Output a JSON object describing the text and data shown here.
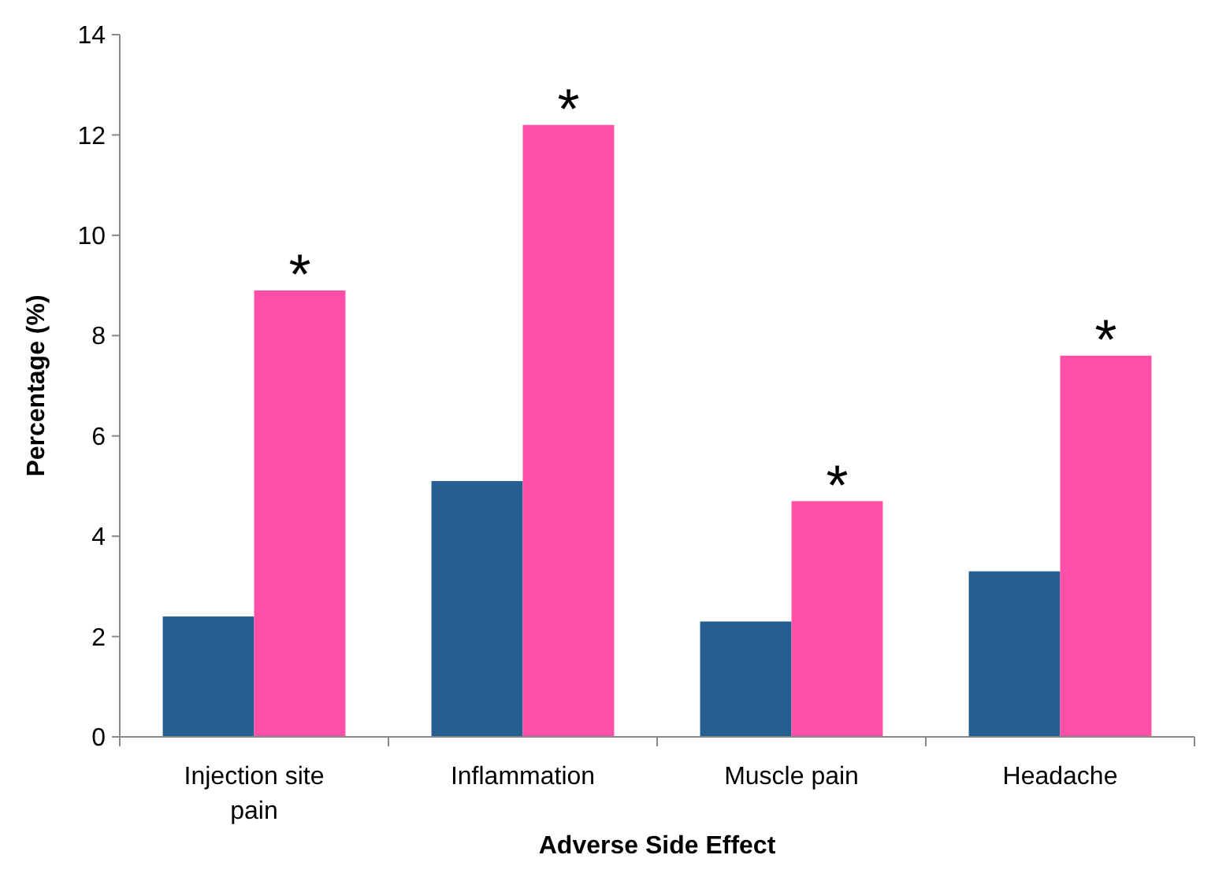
{
  "chart_data": {
    "type": "bar",
    "xlabel": "Adverse Side Effect",
    "ylabel": "Percentage (%)",
    "categories": [
      "Injection site pain",
      "Inflammation",
      "Muscle pain",
      "Headache"
    ],
    "series": [
      {
        "color": "#255e91",
        "values": [
          2.4,
          5.1,
          2.3,
          3.3
        ]
      },
      {
        "color": "#ff4fa7",
        "values": [
          8.9,
          12.2,
          4.7,
          7.6
        ]
      }
    ],
    "ylim": [
      0,
      14
    ],
    "yticks": [
      0,
      2,
      4,
      6,
      8,
      10,
      12,
      14
    ],
    "grid": false,
    "annotations": [
      {
        "text": "*",
        "x": "Injection site pain",
        "y": 8.9
      },
      {
        "text": "*",
        "x": "Inflammation",
        "y": 12.2
      },
      {
        "text": "*",
        "x": "Muscle pain",
        "y": 4.7
      },
      {
        "text": "*",
        "x": "Headache",
        "y": 7.6
      }
    ]
  }
}
